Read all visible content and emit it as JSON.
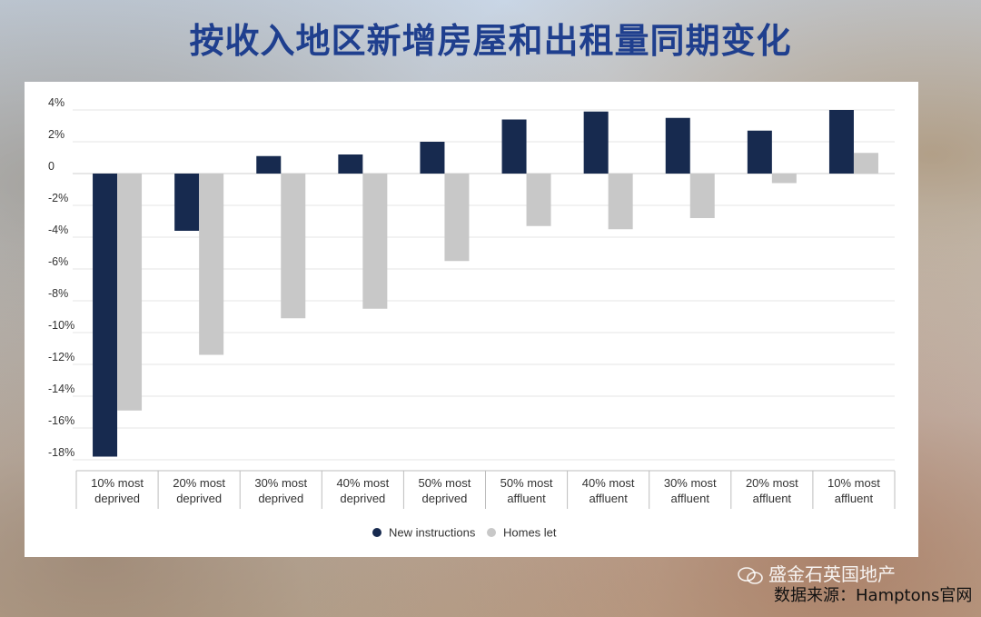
{
  "title": "按收入地区新增房屋和出租量同期变化",
  "watermark": {
    "text": "盛金石英国地产",
    "icon": "wechat-icon"
  },
  "source_text": "数据来源：Hamptons官网",
  "chart_data": {
    "type": "bar",
    "categories": [
      [
        "10% most",
        "deprived"
      ],
      [
        "20% most",
        "deprived"
      ],
      [
        "30% most",
        "deprived"
      ],
      [
        "40% most",
        "deprived"
      ],
      [
        "50% most",
        "deprived"
      ],
      [
        "50% most",
        "affluent"
      ],
      [
        "40% most",
        "affluent"
      ],
      [
        "30% most",
        "affluent"
      ],
      [
        "20% most",
        "affluent"
      ],
      [
        "10% most",
        "affluent"
      ]
    ],
    "series": [
      {
        "name": "New instructions",
        "color": "#172a4f",
        "values": [
          -17.8,
          -3.6,
          1.1,
          1.2,
          2.0,
          3.4,
          3.9,
          3.5,
          2.7,
          4.0
        ]
      },
      {
        "name": "Homes let",
        "color": "#c8c8c8",
        "values": [
          -14.9,
          -11.4,
          -9.1,
          -8.5,
          -5.5,
          -3.3,
          -3.5,
          -2.8,
          -0.6,
          1.3
        ]
      }
    ],
    "y_ticks": [
      {
        "value": 4,
        "label": "4%"
      },
      {
        "value": 2,
        "label": "2%"
      },
      {
        "value": 0,
        "label": "0"
      },
      {
        "value": -2,
        "label": "-2%"
      },
      {
        "value": -4,
        "label": "-4%"
      },
      {
        "value": -6,
        "label": "-6%"
      },
      {
        "value": -8,
        "label": "-8%"
      },
      {
        "value": -10,
        "label": "-10%"
      },
      {
        "value": -12,
        "label": "-12%"
      },
      {
        "value": -14,
        "label": "-14%"
      },
      {
        "value": -16,
        "label": "-16%"
      },
      {
        "value": -18,
        "label": "-18%"
      }
    ],
    "ylim": [
      -18,
      4
    ],
    "grid": true,
    "legend_position": "bottom-center"
  }
}
